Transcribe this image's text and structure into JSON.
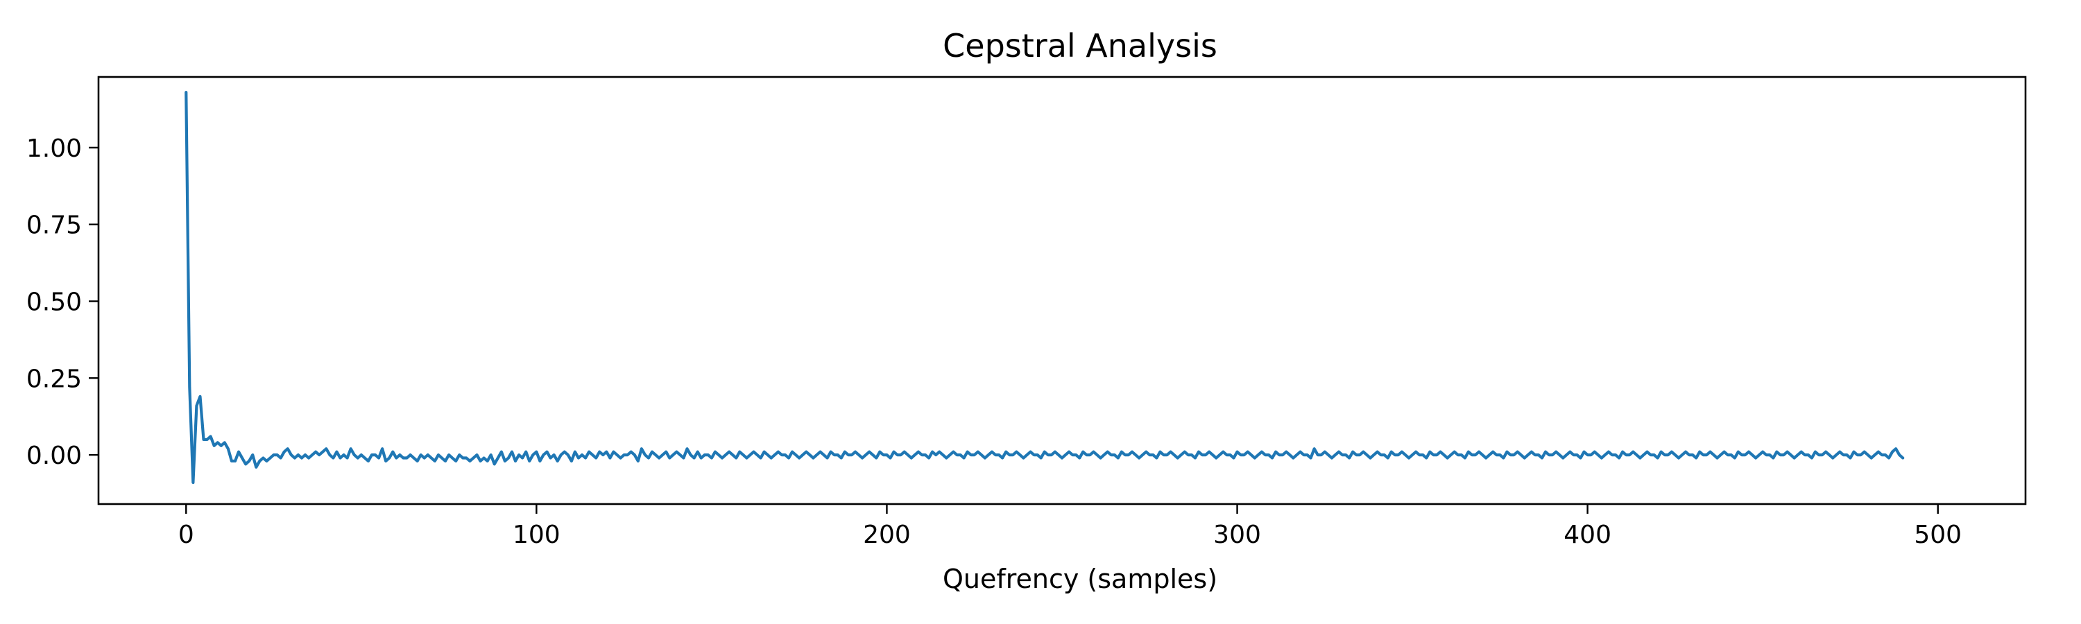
{
  "chart_data": {
    "type": "line",
    "title": "Cepstral Analysis",
    "xlabel": "Quefrency (samples)",
    "ylabel": "",
    "xlim": [
      -25,
      525
    ],
    "ylim": [
      -0.16,
      1.23
    ],
    "xticks": [
      0,
      100,
      200,
      300,
      400,
      500
    ],
    "xtick_labels": [
      "0",
      "100",
      "200",
      "300",
      "400",
      "500"
    ],
    "yticks": [
      0.0,
      0.25,
      0.5,
      0.75,
      1.0
    ],
    "ytick_labels": [
      "0.00",
      "0.25",
      "0.50",
      "0.75",
      "1.00"
    ],
    "grid": false,
    "legend": "none",
    "series": [
      {
        "color": "#1f77b4",
        "x_start": 0,
        "x_step": 1,
        "values": [
          1.18,
          0.22,
          -0.09,
          0.16,
          0.19,
          0.05,
          0.05,
          0.06,
          0.03,
          0.04,
          0.03,
          0.04,
          0.02,
          -0.02,
          -0.02,
          0.01,
          -0.01,
          -0.03,
          -0.02,
          0.0,
          -0.04,
          -0.02,
          -0.01,
          -0.02,
          -0.01,
          0.0,
          0.0,
          -0.01,
          0.01,
          0.02,
          0.0,
          -0.01,
          0.0,
          -0.01,
          0.0,
          -0.01,
          0.0,
          0.01,
          0.0,
          0.01,
          0.02,
          0.0,
          -0.01,
          0.01,
          -0.01,
          0.0,
          -0.01,
          0.02,
          0.0,
          -0.01,
          0.0,
          -0.01,
          -0.02,
          0.0,
          0.0,
          -0.01,
          0.02,
          -0.02,
          -0.01,
          0.01,
          -0.01,
          0.0,
          -0.01,
          -0.01,
          0.0,
          -0.01,
          -0.02,
          0.0,
          -0.01,
          0.0,
          -0.01,
          -0.02,
          0.0,
          -0.01,
          -0.02,
          0.0,
          -0.01,
          -0.02,
          0.0,
          -0.01,
          -0.01,
          -0.02,
          -0.01,
          0.0,
          -0.02,
          -0.01,
          -0.02,
          0.0,
          -0.03,
          -0.01,
          0.01,
          -0.02,
          -0.01,
          0.01,
          -0.02,
          0.0,
          -0.01,
          0.01,
          -0.02,
          0.0,
          0.01,
          -0.02,
          0.0,
          0.01,
          -0.01,
          0.0,
          -0.02,
          0.0,
          0.01,
          0.0,
          -0.02,
          0.01,
          -0.01,
          0.0,
          -0.01,
          0.01,
          0.0,
          -0.01,
          0.01,
          0.0,
          0.01,
          -0.01,
          0.01,
          0.0,
          -0.01,
          0.0,
          0.0,
          0.01,
          0.0,
          -0.02,
          0.02,
          0.0,
          -0.01,
          0.01,
          0.0,
          -0.01,
          0.0,
          0.01,
          -0.01,
          0.0,
          0.01,
          0.0,
          -0.01,
          0.02,
          0.0,
          -0.01,
          0.01,
          -0.01,
          0.0,
          0.0,
          -0.01,
          0.01,
          0.0,
          -0.01,
          0.0,
          0.01,
          0.0,
          -0.01,
          0.01,
          0.0,
          -0.01,
          0.0,
          0.01,
          0.0,
          -0.01,
          0.01,
          0.0,
          -0.01,
          0.0,
          0.01,
          0.0,
          0.0,
          -0.01,
          0.01,
          0.0,
          -0.01,
          0.0,
          0.01,
          0.0,
          -0.01,
          0.0,
          0.01,
          0.0,
          -0.01,
          0.01,
          0.0,
          0.0,
          -0.01,
          0.01,
          0.0,
          0.0,
          0.01,
          0.0,
          -0.01,
          0.0,
          0.01,
          0.0,
          -0.01,
          0.01,
          0.0,
          0.0,
          -0.01,
          0.01,
          0.0,
          0.0,
          0.01,
          0.0,
          -0.01,
          0.0,
          0.01,
          0.0,
          0.0,
          -0.01,
          0.01,
          0.0,
          0.01,
          0.0,
          -0.01,
          0.0,
          0.01,
          0.0,
          0.0,
          -0.01,
          0.01,
          0.0,
          0.0,
          0.01,
          0.0,
          -0.01,
          0.0,
          0.01,
          0.0,
          0.0,
          -0.01,
          0.01,
          0.0,
          0.0,
          0.01,
          0.0,
          -0.01,
          0.0,
          0.01,
          0.0,
          0.0,
          -0.01,
          0.01,
          0.0,
          0.0,
          0.01,
          0.0,
          -0.01,
          0.0,
          0.01,
          0.0,
          0.0,
          -0.01,
          0.01,
          0.0,
          0.0,
          0.01,
          0.0,
          -0.01,
          0.0,
          0.01,
          0.0,
          0.0,
          -0.01,
          0.01,
          0.0,
          0.0,
          0.01,
          0.0,
          -0.01,
          0.0,
          0.01,
          0.0,
          0.0,
          -0.01,
          0.01,
          0.0,
          0.0,
          0.01,
          0.0,
          -0.01,
          0.0,
          0.01,
          0.0,
          0.0,
          -0.01,
          0.01,
          0.0,
          0.0,
          0.01,
          0.0,
          -0.01,
          0.0,
          0.01,
          0.0,
          0.0,
          -0.01,
          0.01,
          0.0,
          0.0,
          0.01,
          0.0,
          -0.01,
          0.0,
          0.01,
          0.0,
          0.0,
          -0.01,
          0.01,
          0.0,
          0.0,
          0.01,
          0.0,
          -0.01,
          0.0,
          0.01,
          0.0,
          0.0,
          -0.01,
          0.02,
          0.0,
          0.0,
          0.01,
          0.0,
          -0.01,
          0.0,
          0.01,
          0.0,
          0.0,
          -0.01,
          0.01,
          0.0,
          0.0,
          0.01,
          0.0,
          -0.01,
          0.0,
          0.01,
          0.0,
          0.0,
          -0.01,
          0.01,
          0.0,
          0.0,
          0.01,
          0.0,
          -0.01,
          0.0,
          0.01,
          0.0,
          0.0,
          -0.01,
          0.01,
          0.0,
          0.0,
          0.01,
          0.0,
          -0.01,
          0.0,
          0.01,
          0.0,
          0.0,
          -0.01,
          0.01,
          0.0,
          0.0,
          0.01,
          0.0,
          -0.01,
          0.0,
          0.01,
          0.0,
          0.0,
          -0.01,
          0.01,
          0.0,
          0.0,
          0.01,
          0.0,
          -0.01,
          0.0,
          0.01,
          0.0,
          0.0,
          -0.01,
          0.01,
          0.0,
          0.0,
          0.01,
          0.0,
          -0.01,
          0.0,
          0.01,
          0.0,
          0.0,
          -0.01,
          0.01,
          0.0,
          0.0,
          0.01,
          0.0,
          -0.01,
          0.0,
          0.01,
          0.0,
          0.0,
          -0.01,
          0.01,
          0.0,
          0.0,
          0.01,
          0.0,
          -0.01,
          0.0,
          0.01,
          0.0,
          0.0,
          -0.01,
          0.01,
          0.0,
          0.0,
          0.01,
          0.0,
          -0.01,
          0.0,
          0.01,
          0.0,
          0.0,
          -0.01,
          0.01,
          0.0,
          0.0,
          0.01,
          0.0,
          -0.01,
          0.0,
          0.01,
          0.0,
          0.0,
          -0.01,
          0.01,
          0.0,
          0.0,
          0.01,
          0.0,
          -0.01,
          0.0,
          0.01,
          0.0,
          0.0,
          -0.01,
          0.01,
          0.0,
          0.0,
          0.01,
          0.0,
          -0.01,
          0.0,
          0.01,
          0.0,
          0.0,
          -0.01,
          0.01,
          0.0,
          0.0,
          0.01,
          0.0,
          -0.01,
          0.0,
          0.01,
          0.0,
          0.0,
          -0.01,
          0.01,
          0.0,
          0.0,
          0.01,
          0.0,
          -0.01,
          0.0,
          0.01,
          0.0,
          0.0,
          -0.01,
          0.01,
          0.02,
          0.0,
          -0.01
        ]
      }
    ]
  }
}
